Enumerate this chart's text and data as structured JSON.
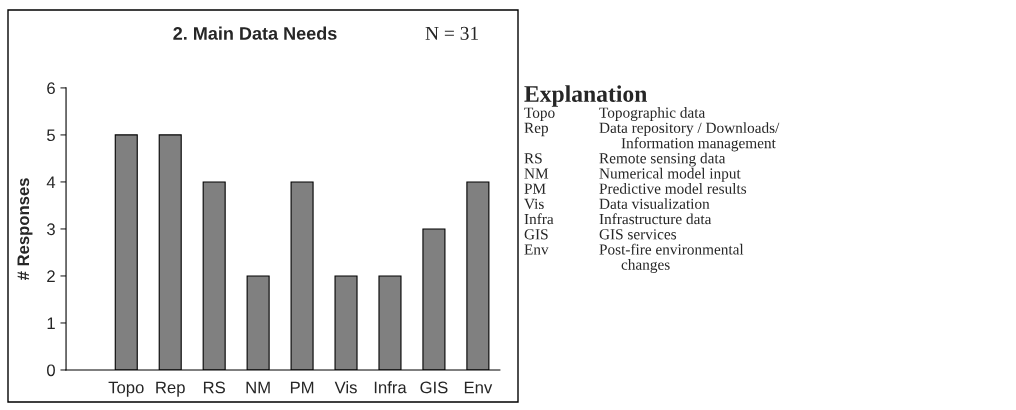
{
  "chart_data": {
    "type": "bar",
    "title": "2. Main Data Needs",
    "ylabel": "# Responses",
    "categories": [
      "Topo",
      "Rep",
      "RS",
      "NM",
      "PM",
      "Vis",
      "Infra",
      "GIS",
      "Env"
    ],
    "values": [
      5,
      5,
      4,
      2,
      4,
      2,
      2,
      3,
      4
    ],
    "color": "#808080",
    "ylim": [
      0,
      6
    ],
    "yticks": [
      0,
      1,
      2,
      3,
      4,
      5,
      6
    ],
    "grid": false,
    "legend": false,
    "annotations": [
      "N = 31",
      "Explanation",
      "Topo",
      "Topographic data",
      "Rep",
      "Data repository / Downloads/\nInformation management",
      "RS",
      "Remote sensing data",
      "NM",
      "Numerical model input",
      "PM",
      "Predictive model results",
      "Vis",
      "Data visualization",
      "Infra",
      "Infrastructure data",
      "GIS",
      "GIS services",
      "Env",
      "Post-fire environmental\nchanges"
    ]
  }
}
